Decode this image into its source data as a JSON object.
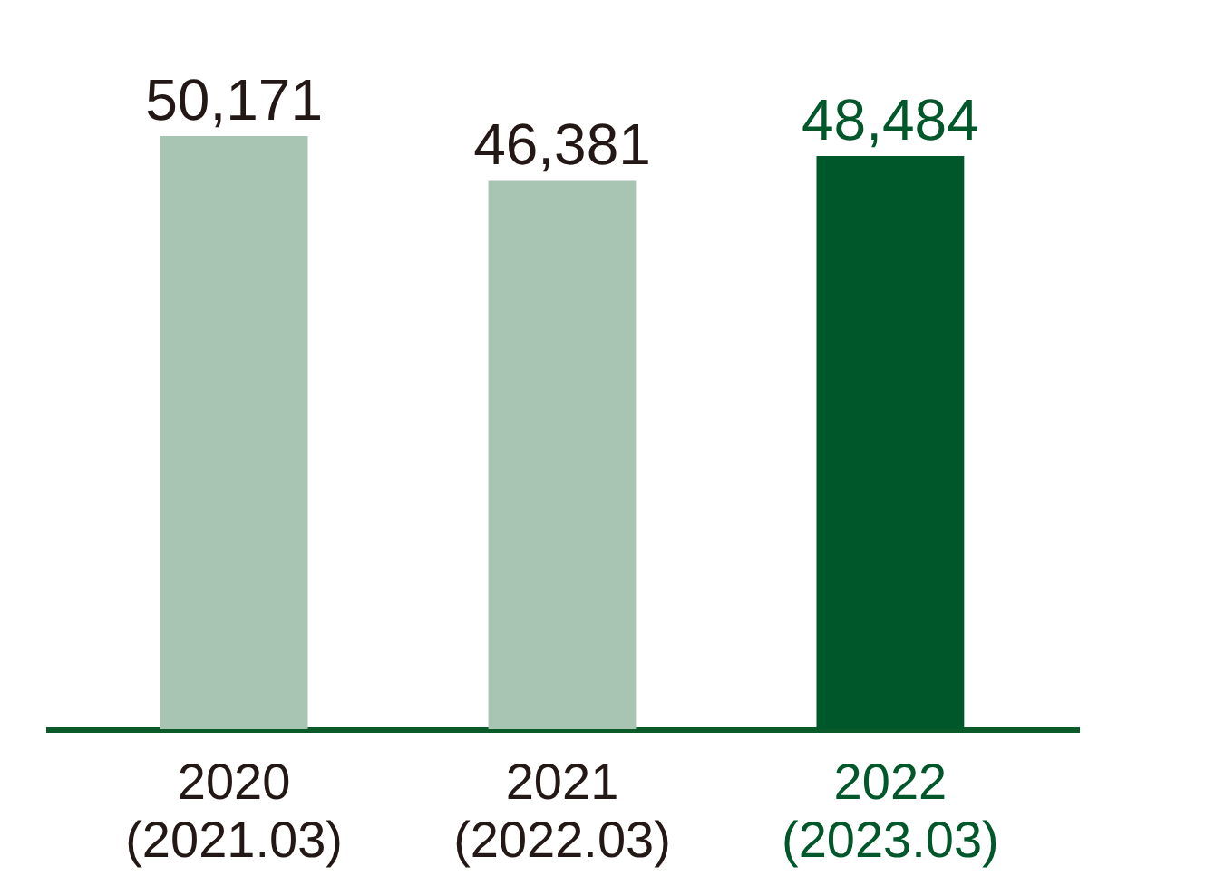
{
  "chart_data": {
    "type": "bar",
    "categories": [
      "2020\n(2021.03)",
      "2021\n(2022.03)",
      "2022\n(2023.03)"
    ],
    "values": [
      50171,
      46381,
      48484
    ],
    "value_labels": [
      "50,171",
      "46,381",
      "48,484"
    ],
    "colors": [
      "#a8c4b3",
      "#a8c4b3",
      "#00582a"
    ]
  }
}
